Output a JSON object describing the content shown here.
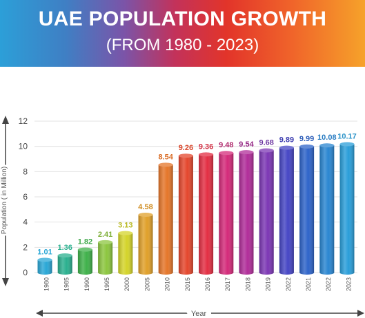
{
  "header": {
    "title": "UAE POPULATION GROWTH",
    "subtitle": "(FROM 1980 - 2023)"
  },
  "chart_data": {
    "type": "bar",
    "title": "UAE POPULATION GROWTH",
    "subtitle": "(FROM 1980 - 2023)",
    "xlabel": "Year",
    "ylabel": "Population ( in Million)",
    "ylim": [
      0,
      12
    ],
    "yticks": [
      0,
      2,
      4,
      6,
      8,
      10,
      12
    ],
    "grid": true,
    "categories": [
      "1980",
      "1985",
      "1990",
      "1995",
      "2000",
      "2005",
      "2010",
      "2015",
      "2016",
      "2017",
      "2018",
      "2019",
      "2022",
      "2021",
      "2022",
      "2023"
    ],
    "values": [
      1.01,
      1.36,
      1.82,
      2.41,
      3.13,
      4.58,
      8.54,
      9.26,
      9.36,
      9.48,
      9.54,
      9.68,
      9.89,
      9.99,
      10.08,
      10.17
    ],
    "labels": [
      "1.01",
      "1.36",
      "1.82",
      "2.41",
      "3.13",
      "4.58",
      "8.54",
      "9.26",
      "9.36",
      "9.48",
      "9.54",
      "9.68",
      "9.89",
      "9.99",
      "10.08",
      "10.17"
    ],
    "colors": [
      "#2aa7d6",
      "#2bb08f",
      "#3fb14a",
      "#8cc63f",
      "#d4d42a",
      "#e0a02a",
      "#e5762a",
      "#e4472d",
      "#e32e43",
      "#d42a7a",
      "#b02d99",
      "#7c37b4",
      "#4646c4",
      "#2e64c9",
      "#2a86d1",
      "#2a9ed9"
    ],
    "label_colors": [
      "#2aa7d6",
      "#2bb08f",
      "#3fa84a",
      "#7cae35",
      "#b8b820",
      "#d08c20",
      "#d96a22",
      "#d94428",
      "#d02c40",
      "#b0286c",
      "#962a86",
      "#6c35a0",
      "#3e3eb0",
      "#2a5cb8",
      "#2a7cc2",
      "#2a92c8"
    ]
  }
}
